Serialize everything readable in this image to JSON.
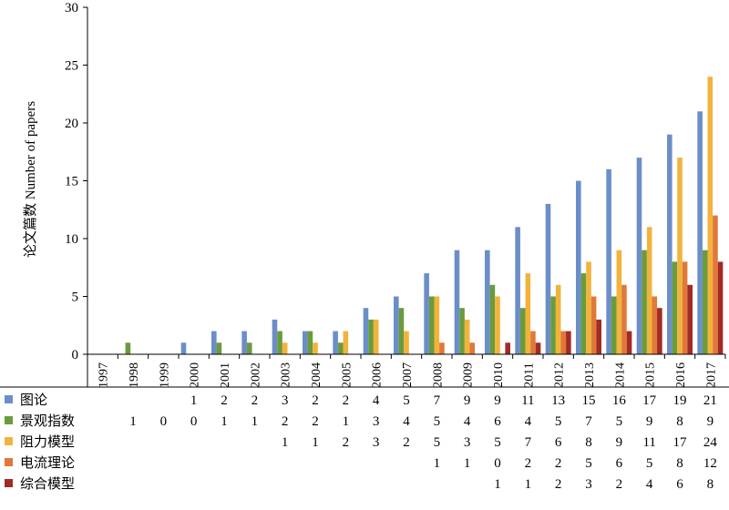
{
  "chart_data": {
    "type": "bar",
    "ylabel": "论文篇数 Number of papers",
    "ylim": [
      0,
      30
    ],
    "yticks": [
      0,
      5,
      10,
      15,
      20,
      25,
      30
    ],
    "grid": false,
    "legend": "data-table-below",
    "categories": [
      "1997",
      "1998",
      "1999",
      "2000",
      "2001",
      "2002",
      "2003",
      "2004",
      "2005",
      "2006",
      "2007",
      "2008",
      "2009",
      "2010",
      "2011",
      "2012",
      "2013",
      "2014",
      "2015",
      "2016",
      "2017"
    ],
    "series": [
      {
        "name": "图论",
        "color": "#6b8ec9",
        "values": [
          null,
          null,
          null,
          1,
          2,
          2,
          3,
          2,
          2,
          4,
          5,
          7,
          9,
          9,
          11,
          13,
          15,
          16,
          17,
          19,
          21
        ]
      },
      {
        "name": "景观指数",
        "color": "#6a9b3d",
        "values": [
          null,
          1,
          0,
          0,
          1,
          1,
          2,
          2,
          1,
          3,
          4,
          5,
          4,
          6,
          4,
          5,
          7,
          5,
          9,
          8,
          9
        ]
      },
      {
        "name": "阻力模型",
        "color": "#f2b33d",
        "values": [
          null,
          null,
          null,
          null,
          null,
          null,
          1,
          1,
          2,
          3,
          2,
          5,
          3,
          5,
          7,
          6,
          8,
          9,
          11,
          17,
          24
        ]
      },
      {
        "name": "电流理论",
        "color": "#e0783a",
        "values": [
          null,
          null,
          null,
          null,
          null,
          null,
          null,
          null,
          null,
          null,
          null,
          1,
          1,
          0,
          2,
          2,
          5,
          6,
          5,
          8,
          12
        ]
      },
      {
        "name": "综合模型",
        "color": "#a32b25",
        "values": [
          null,
          null,
          null,
          null,
          null,
          null,
          null,
          null,
          null,
          null,
          null,
          null,
          null,
          1,
          1,
          2,
          3,
          2,
          4,
          6,
          8
        ]
      }
    ]
  }
}
